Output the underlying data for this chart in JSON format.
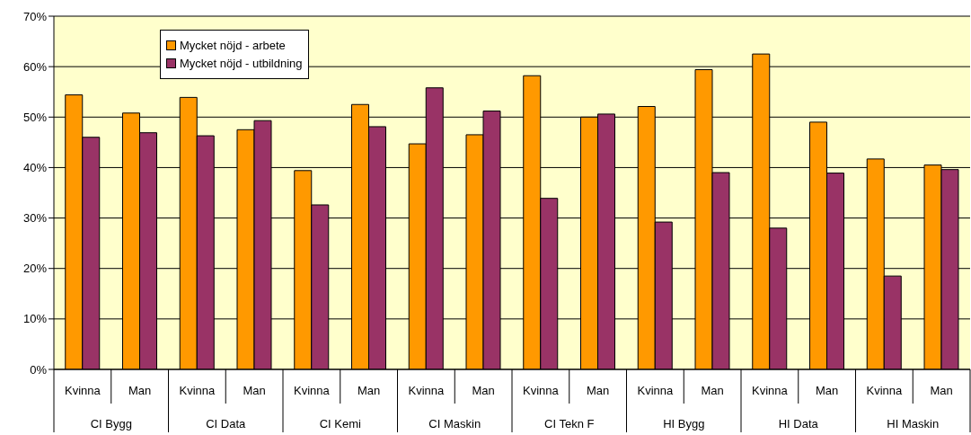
{
  "chart_data": {
    "type": "bar",
    "categories": [
      "Kvinna",
      "Man",
      "Kvinna",
      "Man",
      "Kvinna",
      "Man",
      "Kvinna",
      "Man",
      "Kvinna",
      "Man",
      "Kvinna",
      "Man",
      "Kvinna",
      "Man",
      "Kvinna",
      "Man"
    ],
    "annotations": [
      "CI Bygg",
      "CI Data",
      "CI Kemi",
      "CI Maskin",
      "CI Tekn F",
      "HI Bygg",
      "HI Data",
      "HI Maskin"
    ],
    "series": [
      {
        "name": "Mycket nöjd - arbete",
        "color": "#ff9900",
        "values": [
          54.4,
          50.8,
          53.9,
          47.5,
          39.4,
          52.5,
          44.7,
          46.5,
          58.2,
          50.0,
          52.1,
          59.4,
          62.5,
          49.0,
          41.7,
          40.5
        ]
      },
      {
        "name": "Mycket nöjd - utbildning",
        "color": "#993366",
        "values": [
          46.0,
          46.9,
          46.3,
          49.3,
          32.6,
          48.1,
          55.8,
          51.2,
          33.9,
          50.6,
          29.2,
          39.0,
          28.0,
          38.9,
          18.5,
          39.6
        ]
      }
    ],
    "ylim": [
      0,
      70
    ],
    "yticks": [
      {
        "value": 0,
        "label": "0%"
      },
      {
        "value": 10,
        "label": "10%"
      },
      {
        "value": 20,
        "label": "20%"
      },
      {
        "value": 30,
        "label": "30%"
      },
      {
        "value": 40,
        "label": "40%"
      },
      {
        "value": 50,
        "label": "50%"
      },
      {
        "value": 60,
        "label": "60%"
      },
      {
        "value": 70,
        "label": "70%"
      }
    ],
    "grid": "y",
    "legend": "top left"
  }
}
